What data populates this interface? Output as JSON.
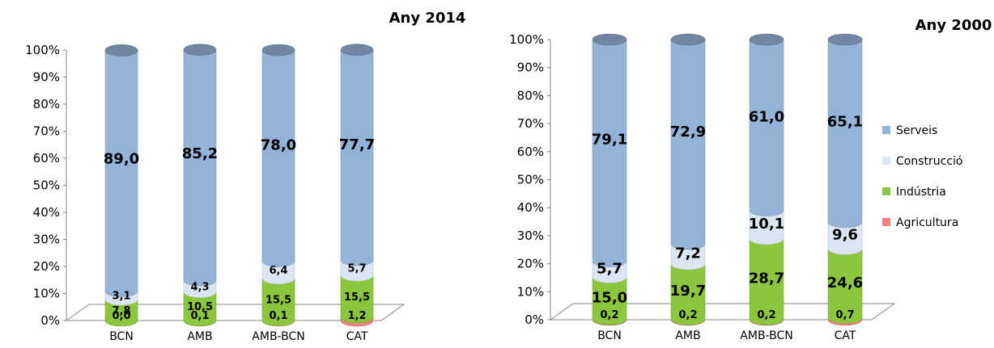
{
  "legend": [
    "Serveis",
    "Construcció",
    "Indústria",
    "Agricultura"
  ],
  "colors": {
    "Serveis": "#95b3d7",
    "Construcció": "#dce6f2",
    "Indústria": "#8cc63f",
    "Agricultura": "#f08080"
  },
  "chart_data": [
    {
      "type": "bar",
      "stacked": "percent",
      "title": "Any 2014",
      "categories": [
        "BCN",
        "AMB",
        "AMB-BCN",
        "CAT"
      ],
      "ylim": [
        0,
        100
      ],
      "yticks": [
        "0%",
        "10%",
        "20%",
        "30%",
        "40%",
        "50%",
        "60%",
        "70%",
        "80%",
        "90%",
        "100%"
      ],
      "series": [
        {
          "name": "Agricultura",
          "values": [
            0.0,
            0.1,
            0.1,
            1.2
          ],
          "labels": [
            "0,0",
            "0,1",
            "0,1",
            "1,2"
          ]
        },
        {
          "name": "Indústria",
          "values": [
            7.8,
            10.5,
            15.5,
            15.5
          ],
          "labels": [
            "7,8",
            "10,5",
            "15,5",
            "15,5"
          ]
        },
        {
          "name": "Construcció",
          "values": [
            3.1,
            4.3,
            6.4,
            5.7
          ],
          "labels": [
            "3,1",
            "4,3",
            "6,4",
            "5,7"
          ]
        },
        {
          "name": "Serveis",
          "values": [
            89.0,
            85.2,
            78.0,
            77.7
          ],
          "labels": [
            "89,0",
            "85,2",
            "78,0",
            "77,7"
          ]
        }
      ]
    },
    {
      "type": "bar",
      "stacked": "percent",
      "title": "Any 2000",
      "categories": [
        "BCN",
        "AMB",
        "AMB-BCN",
        "CAT"
      ],
      "ylim": [
        0,
        100
      ],
      "yticks": [
        "0%",
        "10%",
        "20%",
        "30%",
        "40%",
        "50%",
        "60%",
        "70%",
        "80%",
        "90%",
        "100%"
      ],
      "legend_position": "right",
      "series": [
        {
          "name": "Agricultura",
          "values": [
            0.2,
            0.2,
            0.2,
            0.7
          ],
          "labels": [
            "0,2",
            "0,2",
            "0,2",
            "0,7"
          ]
        },
        {
          "name": "Indústria",
          "values": [
            15.0,
            19.7,
            28.7,
            24.6
          ],
          "labels": [
            "15,0",
            "19,7",
            "28,7",
            "24,6"
          ]
        },
        {
          "name": "Construcció",
          "values": [
            5.7,
            7.2,
            10.1,
            9.6
          ],
          "labels": [
            "5,7",
            "7,2",
            "10,1",
            "9,6"
          ]
        },
        {
          "name": "Serveis",
          "values": [
            79.1,
            72.9,
            61.0,
            65.1
          ],
          "labels": [
            "79,1",
            "72,9",
            "61,0",
            "65,1"
          ]
        }
      ]
    }
  ]
}
